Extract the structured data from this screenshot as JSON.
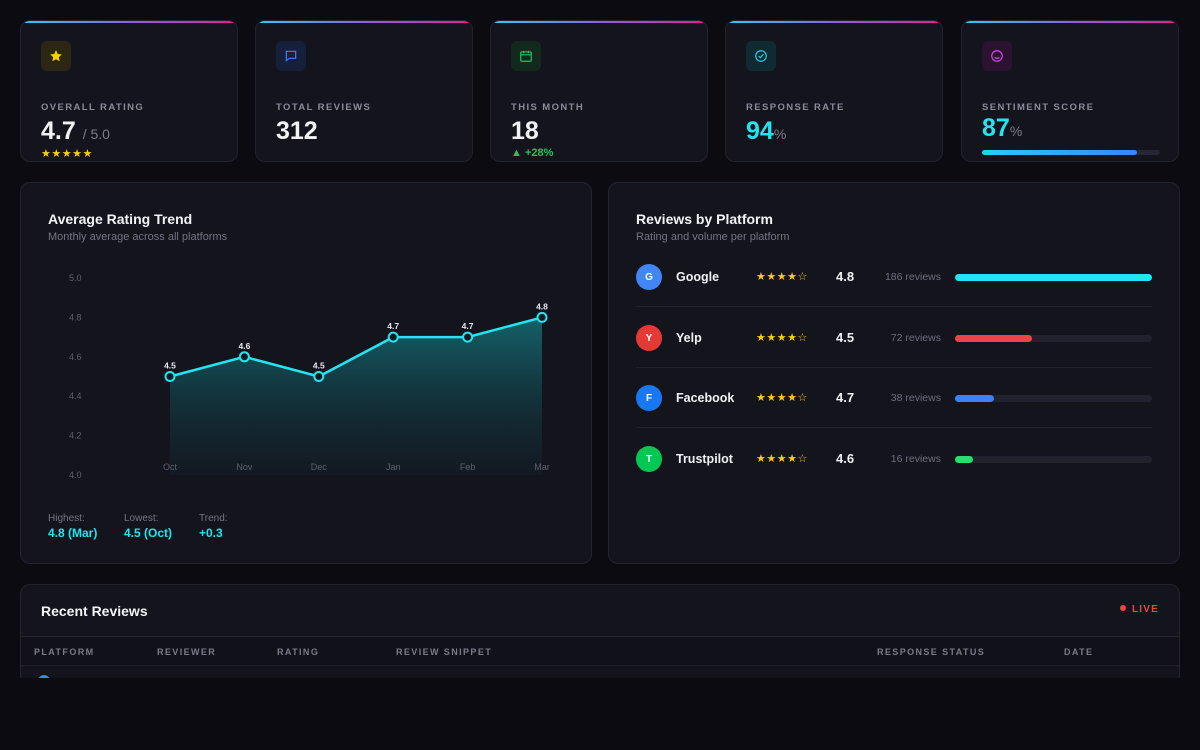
{
  "kpis": {
    "rating": {
      "label": "Overall Rating",
      "value": "4.7",
      "suffix": "/ 5.0",
      "stars": "★★★★★"
    },
    "reviews": {
      "label": "Total Reviews",
      "value": "312"
    },
    "month": {
      "label": "This Month",
      "value": "18",
      "change": "▲ +28%"
    },
    "response": {
      "label": "Response Rate",
      "value": "94",
      "suffix": "%"
    },
    "sentiment": {
      "label": "Sentiment Score",
      "value": "87",
      "suffix": "%",
      "percent": 87
    }
  },
  "trend": {
    "title": "Average Rating Trend",
    "subtitle": "Monthly average across all platforms",
    "stats": [
      {
        "label": "Highest:",
        "value": "4.8 (Mar)"
      },
      {
        "label": "Lowest:",
        "value": "4.5 (Oct)"
      },
      {
        "label": "Trend:",
        "value": "+0.3"
      }
    ]
  },
  "chart_data": {
    "type": "area",
    "title": "Average Rating Trend",
    "categories": [
      "Oct",
      "Nov",
      "Dec",
      "Jan",
      "Feb",
      "Mar"
    ],
    "values": [
      4.5,
      4.6,
      4.5,
      4.7,
      4.7,
      4.8
    ],
    "data_labels": [
      "4.5",
      "4.6",
      "4.5",
      "4.7",
      "4.7",
      "4.8"
    ],
    "y_ticks": [
      "5.0",
      "4.8",
      "4.6",
      "4.4",
      "4.2",
      "4.0"
    ],
    "y_tick_values": [
      5.0,
      4.8,
      4.6,
      4.4,
      4.2,
      4.0
    ],
    "ylim": [
      4.0,
      5.0
    ],
    "line_color": "#22e5f2"
  },
  "platforms": {
    "title": "Reviews by Platform",
    "subtitle": "Rating and volume per platform",
    "items": [
      {
        "initial": "G",
        "name": "Google",
        "stars": "★★★★☆",
        "rating": "4.8",
        "count": "186 reviews",
        "share": 1.0,
        "color": "#4285f4",
        "bar_color": "#22e5f2"
      },
      {
        "initial": "Y",
        "name": "Yelp",
        "stars": "★★★★☆",
        "rating": "4.5",
        "count": "72 reviews",
        "share": 0.39,
        "color": "#e53935",
        "bar_color": "#ef4444"
      },
      {
        "initial": "F",
        "name": "Facebook",
        "stars": "★★★★☆",
        "rating": "4.7",
        "count": "38 reviews",
        "share": 0.2,
        "color": "#1877f2",
        "bar_color": "#3b82f6"
      },
      {
        "initial": "T",
        "name": "Trustpilot",
        "stars": "★★★★☆",
        "rating": "4.6",
        "count": "16 reviews",
        "share": 0.09,
        "color": "#00c853",
        "bar_color": "#22e06b"
      }
    ]
  },
  "recent": {
    "title": "Recent Reviews",
    "live": "LIVE",
    "columns": [
      "Platform",
      "Reviewer",
      "Rating",
      "Review Snippet",
      "Response Status",
      "Date"
    ]
  }
}
